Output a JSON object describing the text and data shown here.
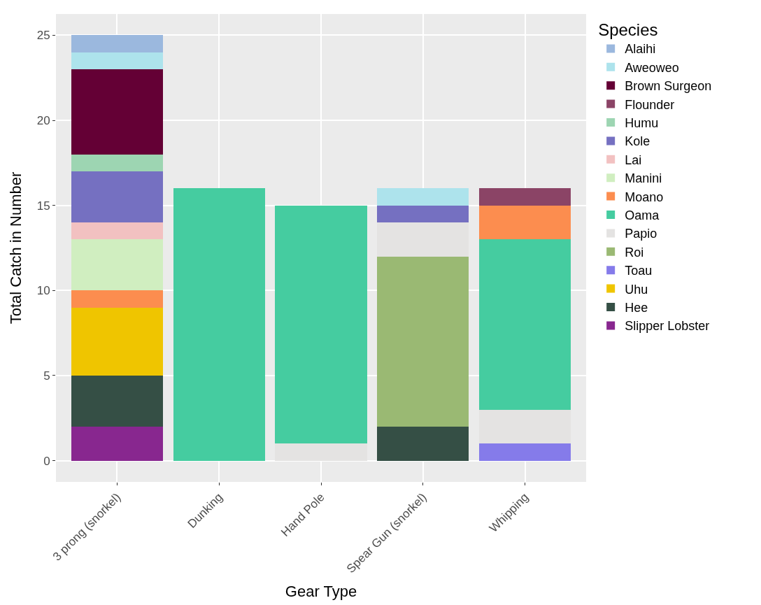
{
  "chart_data": {
    "type": "bar",
    "stacked": true,
    "xlabel": "Gear Type",
    "ylabel": "Total Catch in Number",
    "legend_title": "Species",
    "legend": "right",
    "grid": true,
    "categories": [
      "3 prong (snorkel)",
      "Dunking",
      "Hand Pole",
      "Spear Gun (snorkel)",
      "Whipping"
    ],
    "ylim": [
      -1.25,
      26.25
    ],
    "yticks": [
      0,
      5,
      10,
      15,
      20,
      25
    ],
    "series": [
      {
        "name": "Slipper Lobster",
        "color": "#88278f",
        "values": [
          2,
          0,
          0,
          0,
          0
        ]
      },
      {
        "name": "Hee",
        "color": "#354f45",
        "values": [
          3,
          0,
          0,
          2,
          0
        ]
      },
      {
        "name": "Uhu",
        "color": "#efc500",
        "values": [
          4,
          0,
          0,
          0,
          0
        ]
      },
      {
        "name": "Toau",
        "color": "#857bea",
        "values": [
          0,
          0,
          0,
          0,
          1
        ]
      },
      {
        "name": "Roi",
        "color": "#9ab973",
        "values": [
          0,
          0,
          0,
          10,
          0
        ]
      },
      {
        "name": "Papio",
        "color": "#e4e3e2",
        "values": [
          0,
          0,
          1,
          2,
          2
        ]
      },
      {
        "name": "Oama",
        "color": "#45cca0",
        "values": [
          0,
          16,
          14,
          0,
          10
        ]
      },
      {
        "name": "Moano",
        "color": "#fc8d4f",
        "values": [
          1,
          0,
          0,
          0,
          2
        ]
      },
      {
        "name": "Manini",
        "color": "#d0eec0",
        "values": [
          3,
          0,
          0,
          0,
          0
        ]
      },
      {
        "name": "Lai",
        "color": "#f2c1c1",
        "values": [
          1,
          0,
          0,
          0,
          0
        ]
      },
      {
        "name": "Kole",
        "color": "#7570c1",
        "values": [
          3,
          0,
          0,
          1,
          0
        ]
      },
      {
        "name": "Humu",
        "color": "#9dd5b2",
        "values": [
          1,
          0,
          0,
          0,
          0
        ]
      },
      {
        "name": "Flounder",
        "color": "#8b4466",
        "values": [
          0,
          0,
          0,
          0,
          1
        ]
      },
      {
        "name": "Brown Surgeon",
        "color": "#640035",
        "values": [
          5,
          0,
          0,
          0,
          0
        ]
      },
      {
        "name": "Aweoweo",
        "color": "#ade3ec",
        "values": [
          1,
          0,
          0,
          1,
          0
        ]
      },
      {
        "name": "Alaihi",
        "color": "#9bb8de",
        "values": [
          1,
          0,
          0,
          0,
          0
        ]
      }
    ]
  }
}
